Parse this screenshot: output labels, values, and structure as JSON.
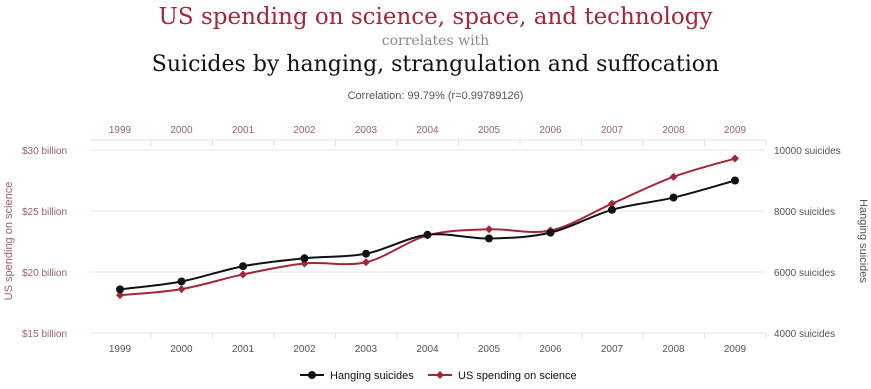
{
  "title": "US spending on science, space, and technology",
  "subtitle": "correlates with",
  "title2": "Suicides by hanging, strangulation and suffocation",
  "correlation": "Correlation: 99.79% (r=0.99789126)",
  "colors": {
    "science": "#a3263a",
    "hanging": "#111111",
    "grid": "#e6e6e6",
    "axis_text": "#9a6070"
  },
  "chart_data": {
    "type": "line",
    "x": [
      1999,
      2000,
      2001,
      2002,
      2003,
      2004,
      2005,
      2006,
      2007,
      2008,
      2009
    ],
    "x_tick_labels": [
      "1999",
      "2000",
      "2001",
      "2002",
      "2003",
      "2004",
      "2005",
      "2006",
      "2007",
      "2008",
      "2009"
    ],
    "left_axis": {
      "label": "US spending on science",
      "min": 15,
      "max": 30,
      "ticks": [
        15,
        20,
        25,
        30
      ],
      "tick_labels": [
        "$15 billion",
        "$20 billion",
        "$25 billion",
        "$30 billion"
      ]
    },
    "right_axis": {
      "label": "Hanging suicides",
      "min": 4000,
      "max": 10000,
      "ticks": [
        4000,
        6000,
        8000,
        10000
      ],
      "tick_labels": [
        "4000 suicides",
        "6000 suicides",
        "8000 suicides",
        "10000 suicides"
      ]
    },
    "series": [
      {
        "name": "Hanging suicides",
        "axis": "right",
        "color": "#111111",
        "values": [
          5430,
          5690,
          6190,
          6450,
          6600,
          7220,
          7100,
          7290,
          8040,
          8440,
          9000
        ]
      },
      {
        "name": "US spending on science",
        "axis": "left",
        "color": "#a3263a",
        "values": [
          18.1,
          18.6,
          19.8,
          20.7,
          20.8,
          23.0,
          23.5,
          23.4,
          25.6,
          27.8,
          29.3
        ]
      }
    ],
    "legend": {
      "position": "bottom",
      "items": [
        "Hanging suicides",
        "US spending on science"
      ]
    },
    "grid": true
  }
}
